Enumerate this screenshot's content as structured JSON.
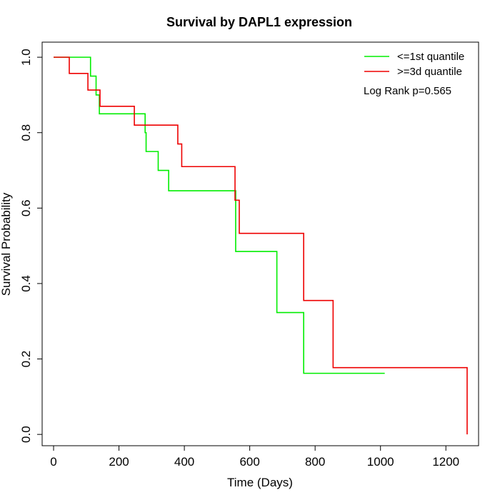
{
  "chart_data": {
    "type": "line",
    "title": "Survival by DAPL1 expression",
    "xlabel": "Time (Days)",
    "ylabel": "Survival Probability",
    "xlim": [
      -35,
      1300
    ],
    "ylim": [
      -0.03,
      1.04
    ],
    "xticks": [
      0,
      200,
      400,
      600,
      800,
      1000,
      1200
    ],
    "yticks": [
      0.0,
      0.2,
      0.4,
      0.6,
      0.8,
      1.0
    ],
    "xtick_labels": [
      "0",
      "200",
      "400",
      "600",
      "800",
      "1000",
      "1200"
    ],
    "ytick_labels": [
      "0.0",
      "0.2",
      "0.4",
      "0.6",
      "0.8",
      "1.0"
    ],
    "grid": false,
    "legend_position": "top-right",
    "annotation": "Log Rank p=0.565",
    "series": [
      {
        "name": "<=1st quantile",
        "color": "#00ee00",
        "steps": [
          [
            0,
            1.0
          ],
          [
            113,
            0.95
          ],
          [
            130,
            0.9
          ],
          [
            140,
            0.85
          ],
          [
            280,
            0.8
          ],
          [
            283,
            0.75
          ],
          [
            320,
            0.7
          ],
          [
            352,
            0.646
          ],
          [
            557,
            0.485
          ],
          [
            683,
            0.323
          ],
          [
            765,
            0.162
          ],
          [
            1013,
            0.162
          ]
        ]
      },
      {
        "name": ">=3d quantile",
        "color": "#ee0000",
        "steps": [
          [
            0,
            1.0
          ],
          [
            48,
            0.957
          ],
          [
            105,
            0.913
          ],
          [
            142,
            0.87
          ],
          [
            247,
            0.82
          ],
          [
            380,
            0.77
          ],
          [
            392,
            0.71
          ],
          [
            555,
            0.621
          ],
          [
            568,
            0.533
          ],
          [
            765,
            0.355
          ],
          [
            855,
            0.177
          ],
          [
            1265,
            0.177
          ],
          [
            1265,
            0.0
          ]
        ]
      }
    ]
  }
}
